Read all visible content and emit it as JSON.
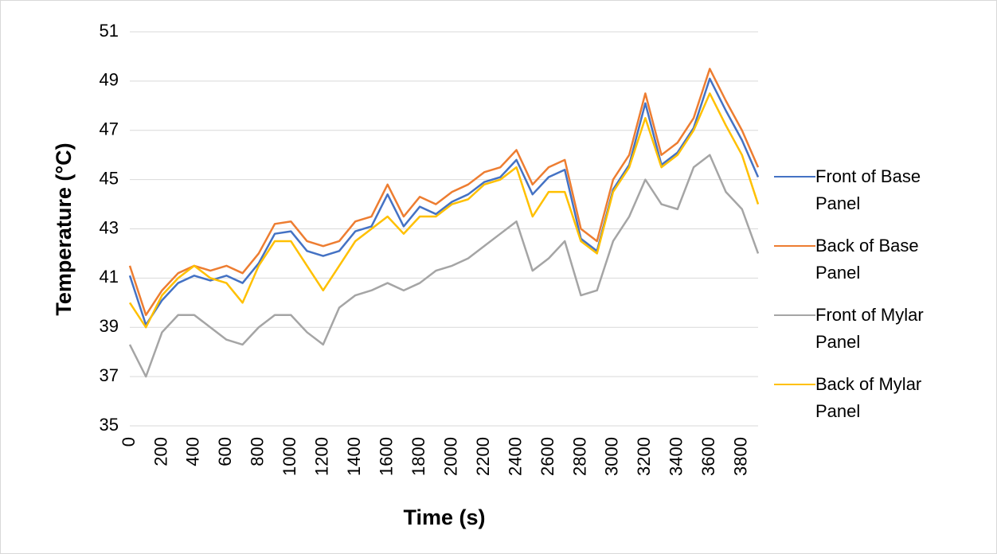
{
  "chart_data": {
    "type": "line",
    "x_label": "Time (s)",
    "y_label": "Temperature (°C)",
    "x": [
      0,
      100,
      200,
      300,
      400,
      500,
      600,
      700,
      800,
      900,
      1000,
      1100,
      1200,
      1300,
      1400,
      1500,
      1600,
      1700,
      1800,
      1900,
      2000,
      2100,
      2200,
      2300,
      2400,
      2500,
      2600,
      2700,
      2800,
      2900,
      3000,
      3100,
      3200,
      3300,
      3400,
      3500,
      3600,
      3700,
      3800,
      3900
    ],
    "series": [
      {
        "name": "Front of Base Panel",
        "color": "#4472c4",
        "values": [
          41.1,
          39.1,
          40.1,
          40.8,
          41.1,
          40.9,
          41.1,
          40.8,
          41.6,
          42.8,
          42.9,
          42.1,
          41.9,
          42.1,
          42.9,
          43.1,
          44.4,
          43.1,
          43.9,
          43.6,
          44.1,
          44.4,
          44.9,
          45.1,
          45.8,
          44.4,
          45.1,
          45.4,
          42.6,
          42.1,
          44.6,
          45.6,
          48.1,
          45.6,
          46.1,
          47.1,
          49.1,
          47.8,
          46.6,
          45.1
        ]
      },
      {
        "name": "Back of Base Panel",
        "color": "#ed7d31",
        "values": [
          41.5,
          39.5,
          40.5,
          41.2,
          41.5,
          41.3,
          41.5,
          41.2,
          42,
          43.2,
          43.3,
          42.5,
          42.3,
          42.5,
          43.3,
          43.5,
          44.8,
          43.5,
          44.3,
          44,
          44.5,
          44.8,
          45.3,
          45.5,
          46.2,
          44.8,
          45.5,
          45.8,
          43,
          42.5,
          45,
          46,
          48.5,
          46,
          46.5,
          47.5,
          49.5,
          48.2,
          47,
          45.5
        ]
      },
      {
        "name": "Front of Mylar Panel",
        "color": "#a5a5a5",
        "values": [
          38.3,
          37,
          38.8,
          39.5,
          39.5,
          39,
          38.5,
          38.3,
          39,
          39.5,
          39.5,
          38.8,
          38.3,
          39.8,
          40.3,
          40.5,
          40.8,
          40.5,
          40.8,
          41.3,
          41.5,
          41.8,
          42.3,
          42.8,
          43.3,
          41.3,
          41.8,
          42.5,
          40.3,
          40.5,
          42.5,
          43.5,
          45,
          44,
          43.8,
          45.5,
          46,
          44.5,
          43.8,
          42
        ]
      },
      {
        "name": "Back of Mylar Panel",
        "color": "#ffc000",
        "values": [
          40,
          39,
          40.3,
          41,
          41.5,
          41,
          40.8,
          40,
          41.5,
          42.5,
          42.5,
          41.5,
          40.5,
          41.5,
          42.5,
          43,
          43.5,
          42.8,
          43.5,
          43.5,
          44,
          44.2,
          44.8,
          45,
          45.5,
          43.5,
          44.5,
          44.5,
          42.5,
          42,
          44.5,
          45.5,
          47.5,
          45.5,
          46,
          47,
          48.5,
          47.2,
          46,
          44
        ]
      }
    ],
    "xlim": [
      0,
      3900
    ],
    "ylim": [
      35,
      51
    ],
    "xticks": [
      0,
      200,
      400,
      600,
      800,
      1000,
      1200,
      1400,
      1600,
      1800,
      2000,
      2200,
      2400,
      2600,
      2800,
      3000,
      3200,
      3400,
      3600,
      3800
    ],
    "yticks": [
      35,
      37,
      39,
      41,
      43,
      45,
      47,
      49,
      51
    ],
    "grid": true,
    "legend": "right"
  }
}
